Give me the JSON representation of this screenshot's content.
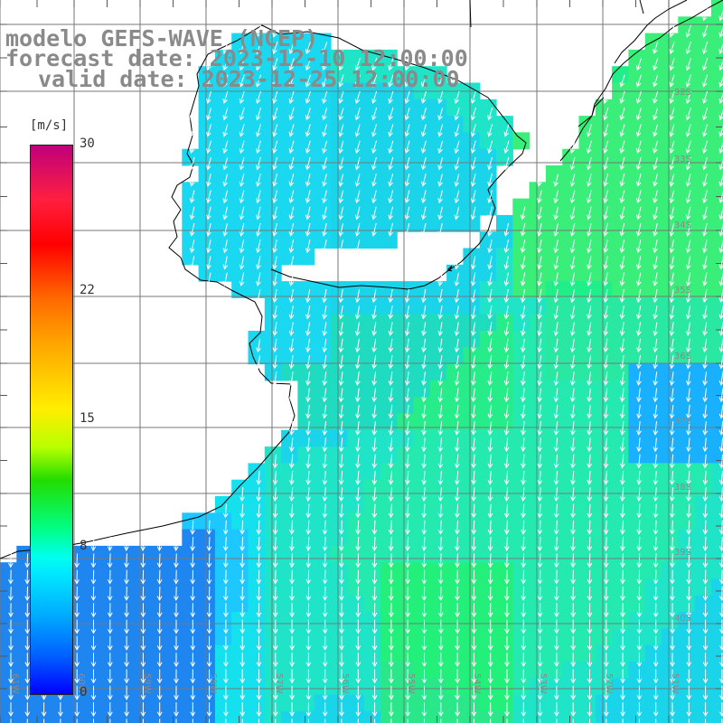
{
  "titles": {
    "model": "modelo GEFS-WAVE (NCEP)",
    "forecast": "forecast date: 2023-12-10 12:00:00",
    "valid": "valid date: 2023-12-25 12:00:00"
  },
  "colorbar": {
    "unit": "[m/s]",
    "ticks": [
      {
        "value": 30,
        "label": "30"
      },
      {
        "value": 22,
        "label": "22"
      },
      {
        "value": 15,
        "label": "15"
      },
      {
        "value": 8,
        "label": "8"
      },
      {
        "value": 0,
        "label": "0"
      }
    ],
    "min": 0,
    "max": 30
  },
  "lat_labels": [
    "32S",
    "33S",
    "34S",
    "35S",
    "36S",
    "37S",
    "38S",
    "39S",
    "40S"
  ],
  "lon_labels": [
    "61W",
    "60W",
    "59W",
    "58W",
    "57W",
    "56W",
    "55W",
    "54W",
    "53W",
    "52W",
    "51W"
  ],
  "colors": {
    "land": "#ffffff",
    "grid": "#777777",
    "coast": "#000000",
    "arrow": "#ffffff",
    "labels": "#8a8a8a"
  }
}
